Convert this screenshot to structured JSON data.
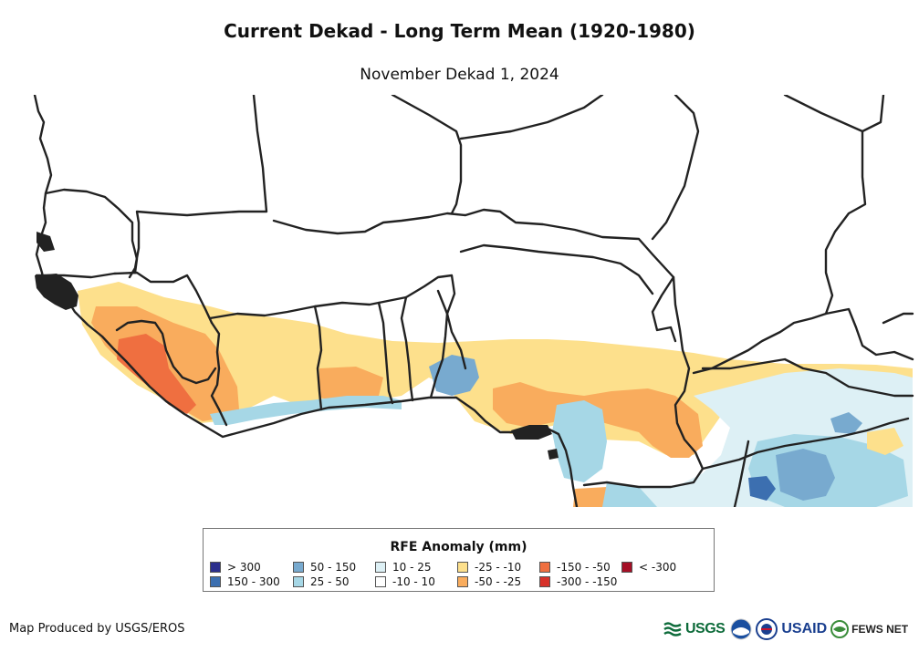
{
  "title": "Current Dekad - Long Term Mean (1920-1980)",
  "subtitle": "November Dekad 1, 2024",
  "legend": {
    "title": "RFE Anomaly (mm)",
    "items": [
      {
        "label": "> 300",
        "color": "#2b2f8c"
      },
      {
        "label": "150 - 300",
        "color": "#3c6fb0"
      },
      {
        "label": "50 - 150",
        "color": "#78aacf"
      },
      {
        "label": "25 - 50",
        "color": "#a6d7e6"
      },
      {
        "label": "10 - 25",
        "color": "#ddf0f5"
      },
      {
        "label": "-10 - 10",
        "color": "#ffffff"
      },
      {
        "label": "-25 - -10",
        "color": "#fde08c"
      },
      {
        "label": "-50 - -25",
        "color": "#f9ac5d"
      },
      {
        "label": "-150 - -50",
        "color": "#ef6f40"
      },
      {
        "label": "-300 - -150",
        "color": "#d7312a"
      },
      {
        "label": "< -300",
        "color": "#a50f26"
      }
    ]
  },
  "credit": "Map Produced by USGS/EROS",
  "logos": {
    "usgs": "USGS",
    "usaid": "USAID",
    "fews": "FEWS NET"
  },
  "map": {
    "region": "West Africa",
    "border_color": "#222222"
  }
}
